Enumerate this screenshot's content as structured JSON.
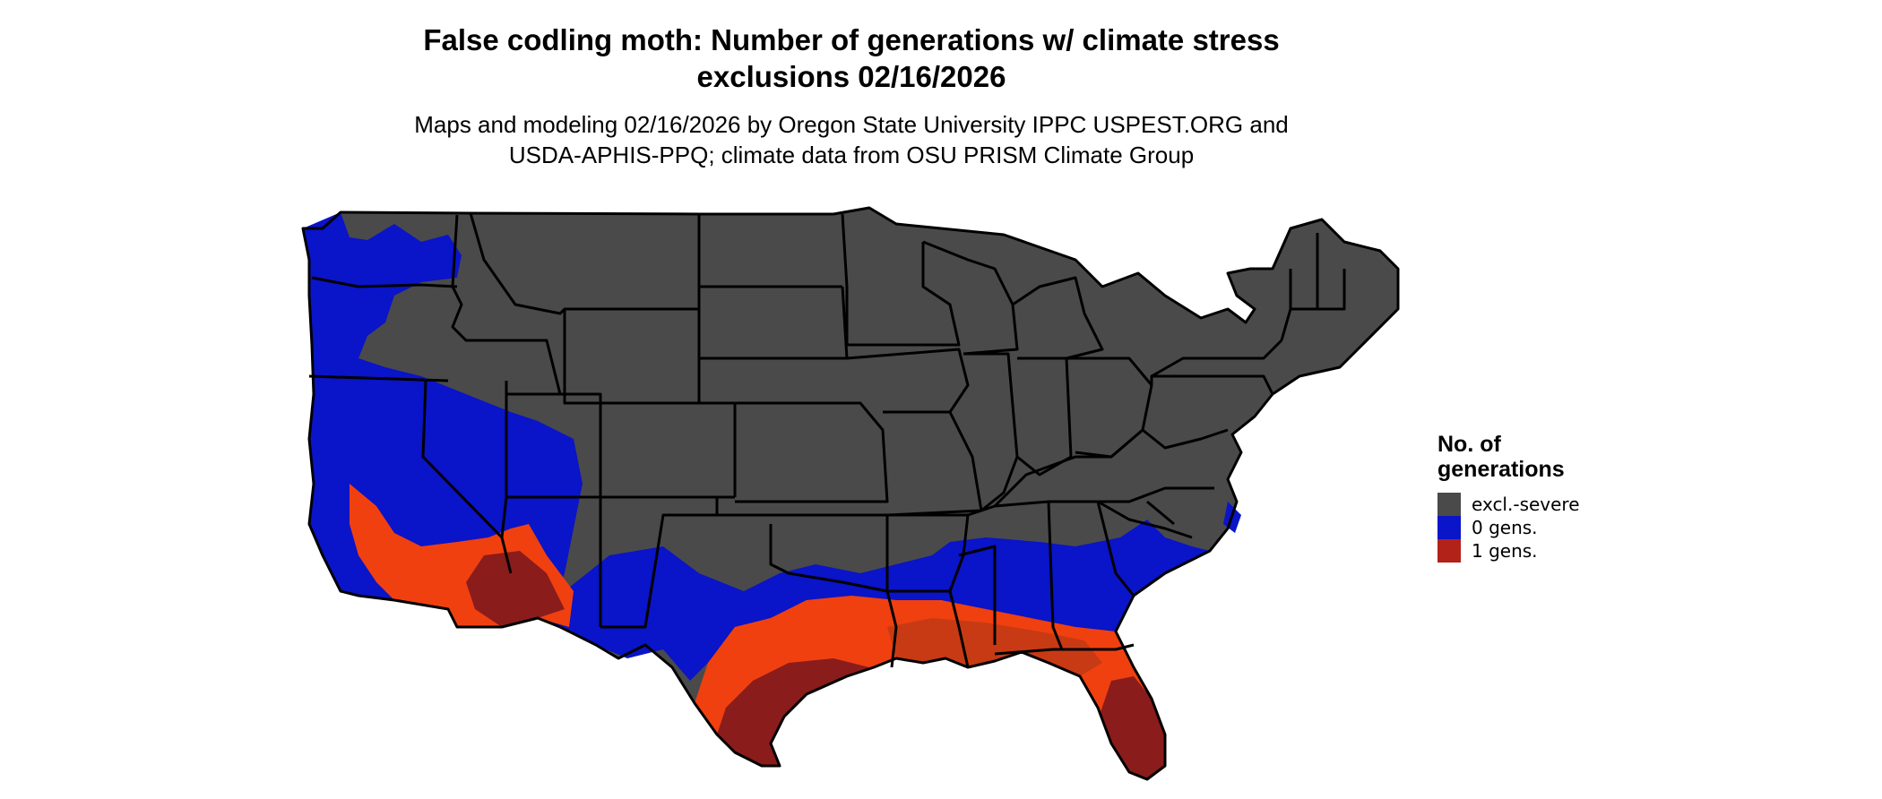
{
  "title": {
    "line1": "False codling moth: Number of generations w/ climate stress",
    "line2": "exclusions 02/16/2026"
  },
  "subtitle": {
    "line1": "Maps and modeling 02/16/2026 by Oregon State University IPPC USPEST.ORG and",
    "line2": "USDA-APHIS-PPQ; climate data from OSU PRISM Climate Group"
  },
  "legend": {
    "title_line1": "No. of",
    "title_line2": "generations",
    "items": [
      {
        "label": "excl.-severe",
        "color": "#4a4a4a"
      },
      {
        "label": "0 gens.",
        "color": "#0a14c8"
      },
      {
        "label": "1 gens.",
        "color": "#b22218"
      }
    ]
  },
  "colors": {
    "excluded": "#4a4a4a",
    "zero_gens": "#0a14c8",
    "one_gen_light": "#f04010",
    "one_gen_mid": "#c83a14",
    "one_gen_dark": "#8a1c1c",
    "border": "#000000"
  }
}
